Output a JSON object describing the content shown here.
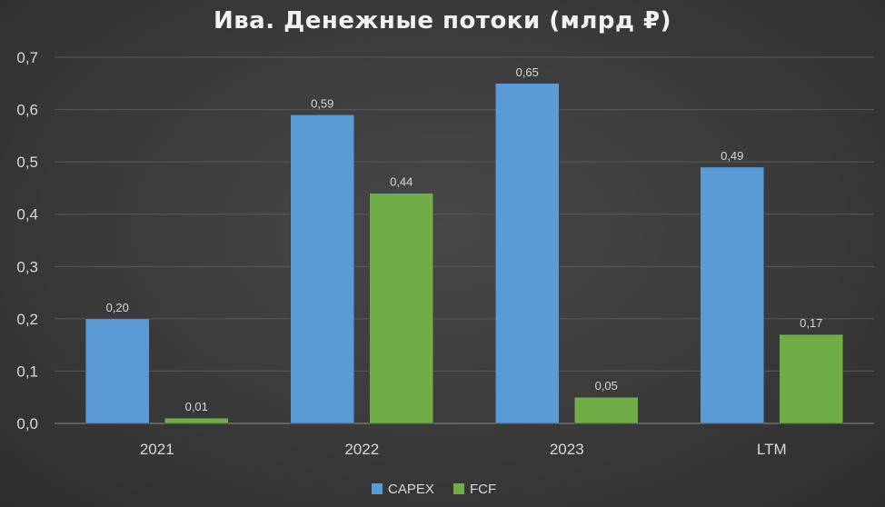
{
  "chart_data": {
    "type": "bar",
    "title": "Ива. Денежные потоки (млрд ₽)",
    "xlabel": "",
    "ylabel": "",
    "categories": [
      "2021",
      "2022",
      "2023",
      "LTM"
    ],
    "series": [
      {
        "name": "CAPEX",
        "color": "#5b9bd5",
        "values": [
          0.2,
          0.59,
          0.65,
          0.49
        ],
        "labels": [
          "0,20",
          "0,59",
          "0,65",
          "0,49"
        ]
      },
      {
        "name": "FCF",
        "color": "#70ad47",
        "values": [
          0.01,
          0.44,
          0.05,
          0.17
        ],
        "labels": [
          "0,01",
          "0,44",
          "0,05",
          "0,17"
        ]
      }
    ],
    "ylim": [
      0,
      0.7
    ],
    "yticks": [
      0,
      0.1,
      0.2,
      0.3,
      0.4,
      0.5,
      0.6,
      0.7
    ],
    "ytick_labels": [
      "0,0",
      "0,1",
      "0,2",
      "0,3",
      "0,4",
      "0,5",
      "0,6",
      "0,7"
    ],
    "grid": true,
    "legend_position": "bottom"
  }
}
